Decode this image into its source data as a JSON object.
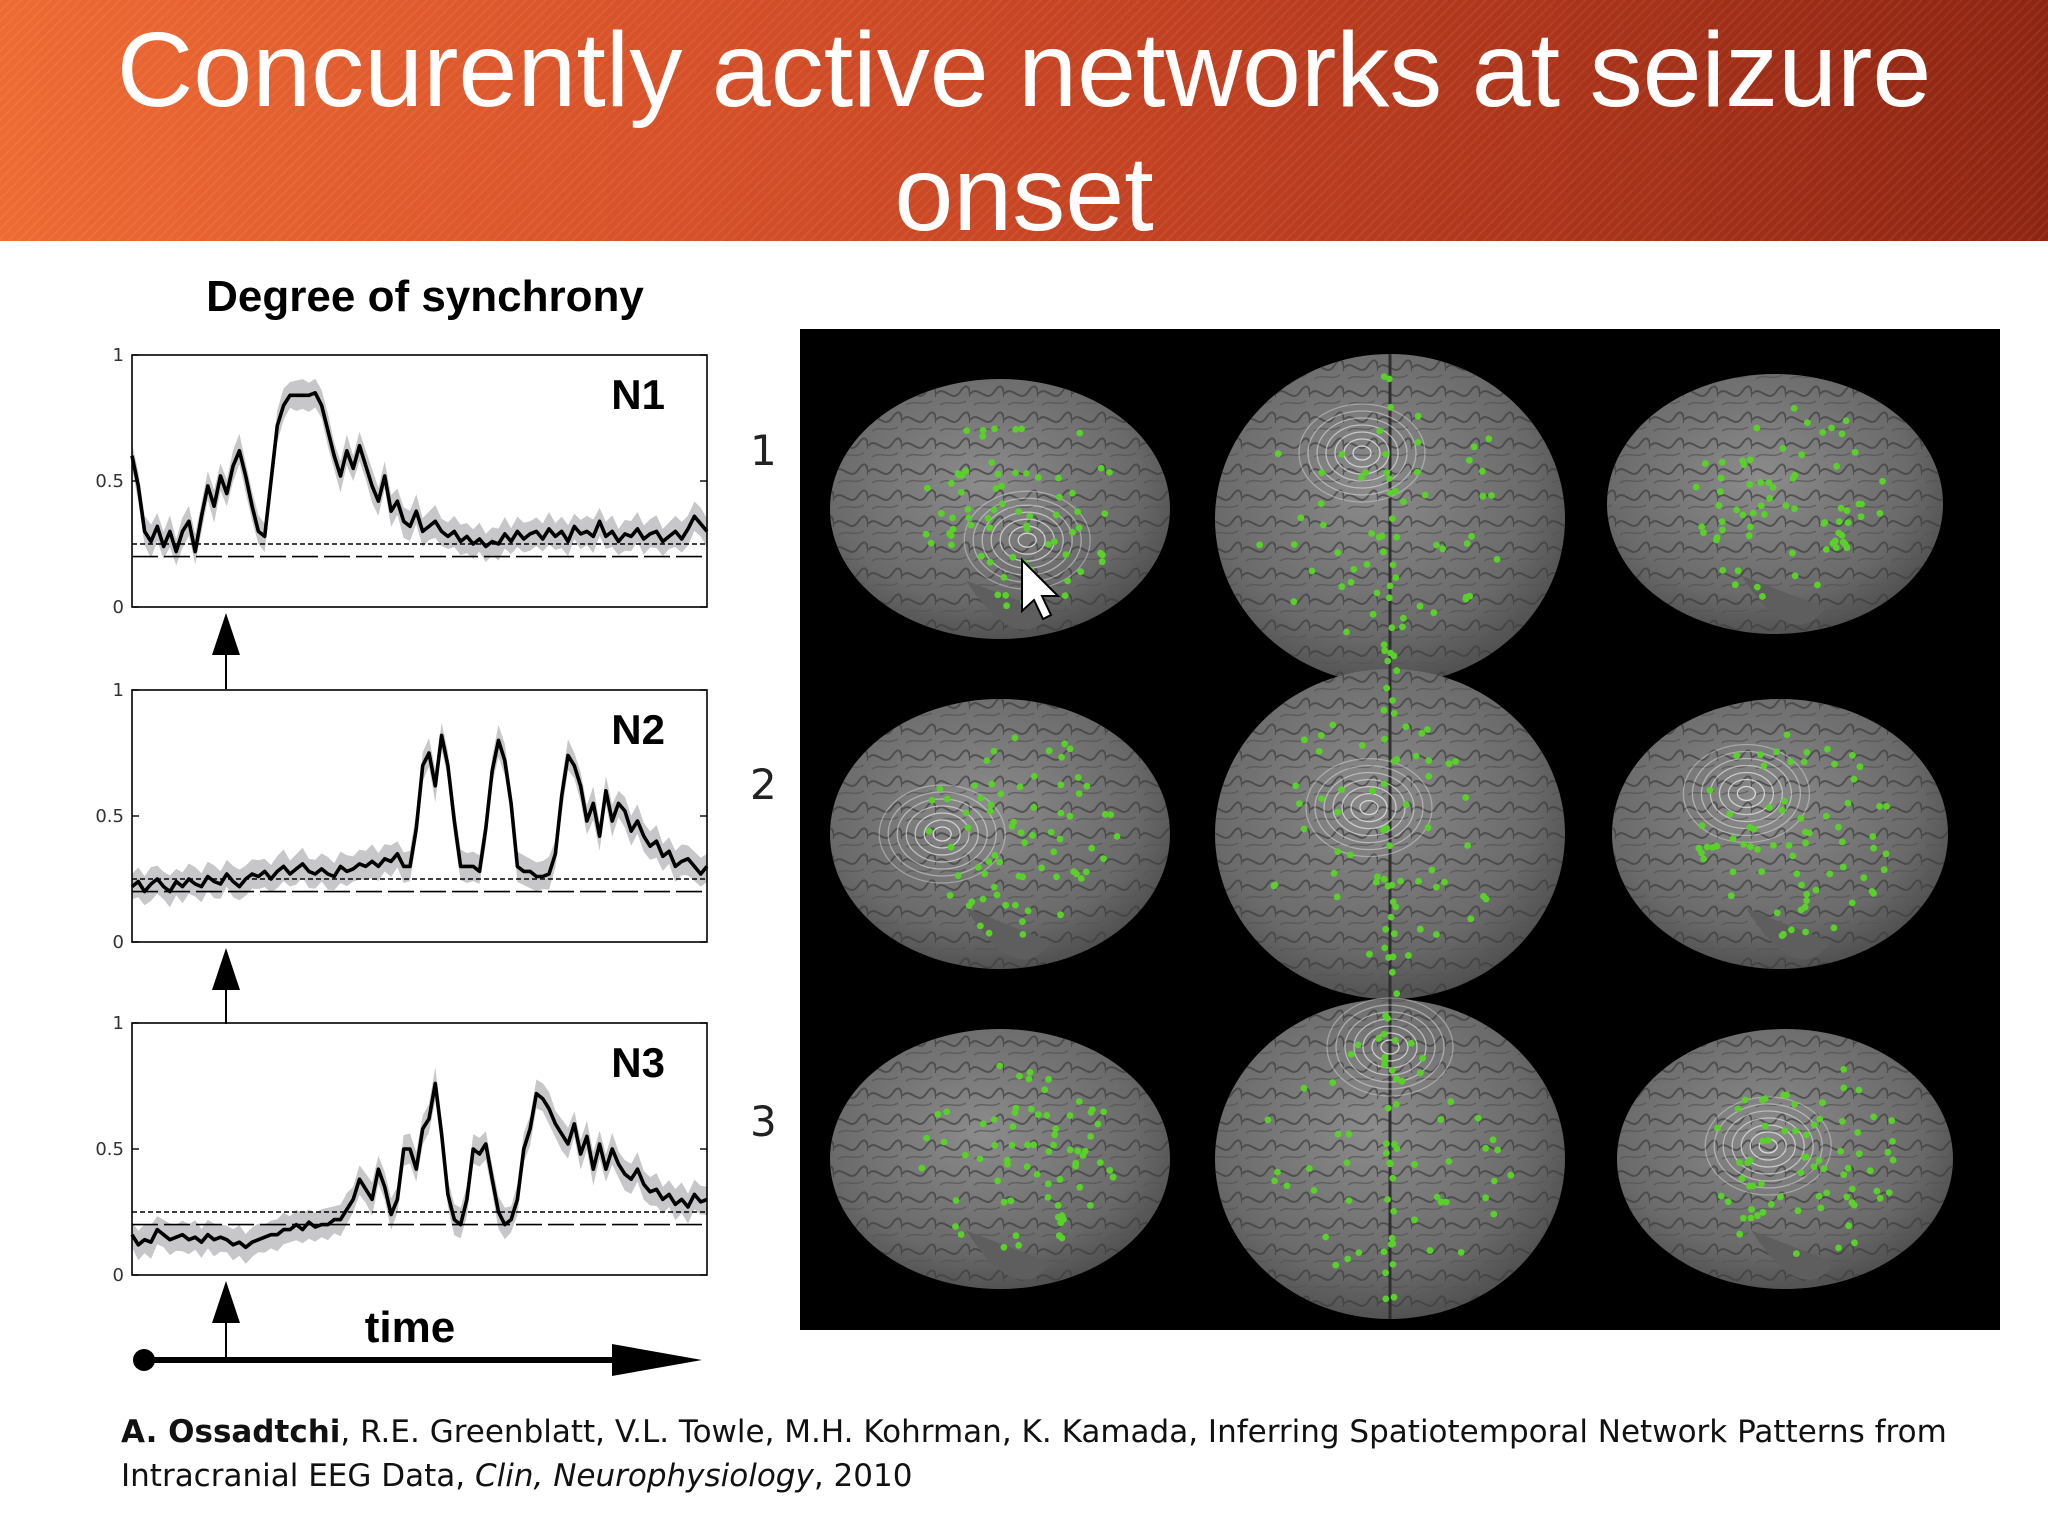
{
  "slide": {
    "title": "Concurently active networks at seizure onset"
  },
  "chart_data": {
    "type": "line",
    "title": "Degree of synchrony",
    "xlabel": "time",
    "ylim": [
      0,
      1
    ],
    "yticks": [
      "1",
      "0.5",
      "0"
    ],
    "panels": [
      {
        "name": "N1",
        "threshold_short_dash": 0.25,
        "threshold_long_dash": 0.2,
        "series": [
          {
            "values": [
              0.6,
              0.48,
              0.3,
              0.26,
              0.32,
              0.24,
              0.3,
              0.22,
              0.3,
              0.34,
              0.22,
              0.36,
              0.48,
              0.4,
              0.52,
              0.45,
              0.56,
              0.62,
              0.52,
              0.4,
              0.3,
              0.28,
              0.5,
              0.72,
              0.8,
              0.84,
              0.84,
              0.84,
              0.84,
              0.85,
              0.8,
              0.7,
              0.6,
              0.52,
              0.62,
              0.55,
              0.64,
              0.56,
              0.48,
              0.42,
              0.52,
              0.38,
              0.42,
              0.34,
              0.32,
              0.38,
              0.3,
              0.32,
              0.34,
              0.3,
              0.28,
              0.3,
              0.26,
              0.28,
              0.25,
              0.27,
              0.24,
              0.26,
              0.25,
              0.29,
              0.26,
              0.3,
              0.27,
              0.29,
              0.3,
              0.27,
              0.31,
              0.28,
              0.3,
              0.26,
              0.32,
              0.29,
              0.3,
              0.28,
              0.34,
              0.28,
              0.3,
              0.26,
              0.29,
              0.28,
              0.31,
              0.27,
              0.29,
              0.3,
              0.26,
              0.28,
              0.3,
              0.27,
              0.31,
              0.36,
              0.33,
              0.3
            ]
          }
        ]
      },
      {
        "name": "N2",
        "threshold_short_dash": 0.25,
        "threshold_long_dash": 0.2,
        "series": [
          {
            "values": [
              0.22,
              0.24,
              0.2,
              0.23,
              0.25,
              0.22,
              0.2,
              0.24,
              0.22,
              0.25,
              0.23,
              0.22,
              0.26,
              0.24,
              0.23,
              0.27,
              0.24,
              0.22,
              0.25,
              0.27,
              0.26,
              0.28,
              0.25,
              0.28,
              0.3,
              0.27,
              0.29,
              0.31,
              0.28,
              0.27,
              0.29,
              0.27,
              0.26,
              0.3,
              0.28,
              0.29,
              0.31,
              0.3,
              0.32,
              0.3,
              0.33,
              0.32,
              0.35,
              0.3,
              0.3,
              0.45,
              0.7,
              0.75,
              0.62,
              0.82,
              0.7,
              0.48,
              0.3,
              0.3,
              0.3,
              0.28,
              0.45,
              0.68,
              0.8,
              0.72,
              0.55,
              0.3,
              0.28,
              0.28,
              0.26,
              0.26,
              0.27,
              0.35,
              0.58,
              0.74,
              0.7,
              0.62,
              0.48,
              0.55,
              0.42,
              0.6,
              0.48,
              0.55,
              0.52,
              0.44,
              0.48,
              0.42,
              0.38,
              0.4,
              0.34,
              0.36,
              0.3,
              0.32,
              0.33,
              0.3,
              0.27,
              0.3
            ]
          }
        ]
      },
      {
        "name": "N3",
        "threshold_short_dash": 0.25,
        "threshold_long_dash": 0.2,
        "series": [
          {
            "values": [
              0.16,
              0.12,
              0.14,
              0.13,
              0.18,
              0.16,
              0.14,
              0.15,
              0.16,
              0.14,
              0.15,
              0.13,
              0.16,
              0.14,
              0.15,
              0.14,
              0.12,
              0.13,
              0.11,
              0.13,
              0.14,
              0.15,
              0.16,
              0.16,
              0.18,
              0.18,
              0.2,
              0.18,
              0.21,
              0.19,
              0.2,
              0.2,
              0.22,
              0.22,
              0.26,
              0.3,
              0.38,
              0.34,
              0.3,
              0.42,
              0.35,
              0.24,
              0.3,
              0.5,
              0.5,
              0.42,
              0.58,
              0.62,
              0.76,
              0.56,
              0.32,
              0.22,
              0.2,
              0.3,
              0.5,
              0.48,
              0.52,
              0.38,
              0.25,
              0.2,
              0.22,
              0.3,
              0.5,
              0.58,
              0.72,
              0.7,
              0.66,
              0.6,
              0.56,
              0.52,
              0.6,
              0.48,
              0.55,
              0.42,
              0.52,
              0.42,
              0.5,
              0.44,
              0.4,
              0.38,
              0.42,
              0.36,
              0.33,
              0.34,
              0.3,
              0.32,
              0.28,
              0.3,
              0.27,
              0.32,
              0.29,
              0.3
            ]
          }
        ]
      }
    ]
  },
  "figure": {
    "row_labels": [
      "1",
      "2",
      "3"
    ]
  },
  "citation": {
    "lead_author": "A. Ossadtchi",
    "rest": ", R.E. Greenblatt, V.L. Towle, M.H. Kohrman, K. Kamada, Inferring Spatiotemporal Network Patterns from Intracranial EEG Data, ",
    "journal": "Clin, Neurophysiology",
    "year": ", 2010"
  },
  "colors": {
    "title_bar_start": "#ee6a33",
    "title_bar_end": "#8e2512",
    "band": "#c7c7c9",
    "electrode": "#5ad12a",
    "brain": "#6d6d6d"
  }
}
